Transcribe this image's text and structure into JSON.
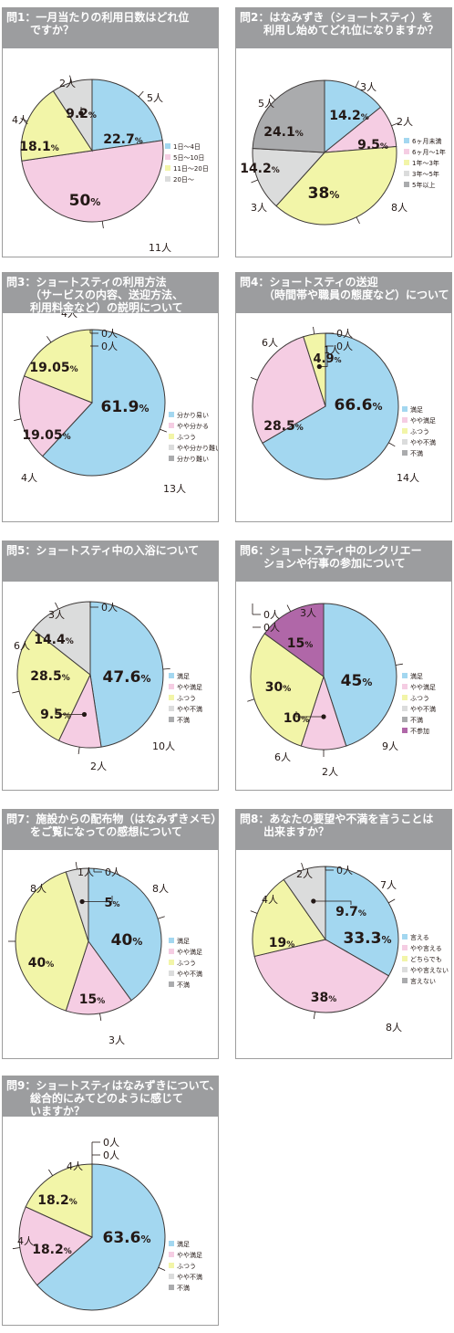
{
  "colors": {
    "blue": "#a3d7f0",
    "pink": "#f5cde3",
    "yellow": "#f2f5a8",
    "lightgray": "#dbdcdc",
    "gray": "#aaabad",
    "purple": "#b067a8"
  },
  "chart_data": [
    {
      "type": "pie",
      "title": [
        "問1：一月当たりの利用日数はどれ位",
        "ですか？"
      ],
      "slices": [
        {
          "name": "1日〜4日",
          "count": 5,
          "count_label": "5人",
          "percent": 22.7,
          "percent_label": "22.7%",
          "color": "blue"
        },
        {
          "name": "5日〜10日",
          "count": 11,
          "count_label": "11人",
          "percent": 50,
          "percent_label": "50%",
          "color": "pink"
        },
        {
          "name": "11日〜20日",
          "count": 4,
          "count_label": "4人",
          "percent": 18.1,
          "percent_label": "18.1%",
          "color": "yellow"
        },
        {
          "name": "20日〜",
          "count": 2,
          "count_label": "2人",
          "percent": 9.2,
          "percent_label": "9.2%",
          "color": "lightgray"
        }
      ]
    },
    {
      "type": "pie",
      "title": [
        "問2：はなみずき（ショートスティ）を",
        "利用し始めてどれ位になりますか？"
      ],
      "slices": [
        {
          "name": "6ヶ月未満",
          "count": 3,
          "count_label": "3人",
          "percent": 14.2,
          "percent_label": "14.2%",
          "color": "blue"
        },
        {
          "name": "6ヶ月〜1年",
          "count": 2,
          "count_label": "2人",
          "percent": 9.5,
          "percent_label": "9.5%",
          "color": "pink"
        },
        {
          "name": "1年〜3年",
          "count": 8,
          "count_label": "8人",
          "percent": 38,
          "percent_label": "38%",
          "color": "yellow"
        },
        {
          "name": "3年〜5年",
          "count": 3,
          "count_label": "3人",
          "percent": 14.2,
          "percent_label": "14.2%",
          "color": "lightgray"
        },
        {
          "name": "5年以上",
          "count": 5,
          "count_label": "5人",
          "percent": 24.1,
          "percent_label": "24.1%",
          "color": "gray"
        }
      ]
    },
    {
      "type": "pie",
      "title": [
        "問3：ショートスティの利用方法",
        "（サービスの内容、送迎方法、",
        "利用料金など）の説明について"
      ],
      "slices": [
        {
          "name": "分かり易い",
          "count": 13,
          "count_label": "13人",
          "percent": 61.9,
          "percent_label": "61.9%",
          "color": "blue"
        },
        {
          "name": "やや分かる",
          "count": 4,
          "count_label": "4人",
          "percent": 19.05,
          "percent_label": "19.05%",
          "color": "pink"
        },
        {
          "name": "ふつう",
          "count": 4,
          "count_label": "4人",
          "percent": 19.05,
          "percent_label": "19.05%",
          "color": "yellow"
        },
        {
          "name": "やや分かり難い",
          "count": 0,
          "count_label": "0人",
          "percent": 0,
          "percent_label": "",
          "color": "lightgray"
        },
        {
          "name": "分かり難い",
          "count": 0,
          "count_label": "0人",
          "percent": 0,
          "percent_label": "",
          "color": "gray"
        }
      ]
    },
    {
      "type": "pie",
      "title": [
        "問4：ショートスティの送迎",
        "（時間帯や職員の態度など）について"
      ],
      "slices": [
        {
          "name": "満足",
          "count": 14,
          "count_label": "14人",
          "percent": 66.6,
          "percent_label": "66.6%",
          "color": "blue"
        },
        {
          "name": "やや満足",
          "count": 6,
          "count_label": "6人",
          "percent": 28.5,
          "percent_label": "28.5%",
          "color": "pink"
        },
        {
          "name": "ふつう",
          "count": 1,
          "count_label": "1人",
          "percent": 4.9,
          "percent_label": "4.9%",
          "color": "yellow"
        },
        {
          "name": "やや不満",
          "count": 0,
          "count_label": "0人",
          "percent": 0,
          "percent_label": "",
          "color": "lightgray"
        },
        {
          "name": "不満",
          "count": 0,
          "count_label": "0人",
          "percent": 0,
          "percent_label": "",
          "color": "gray"
        }
      ]
    },
    {
      "type": "pie",
      "title": [
        "問5：ショートスティ中の入浴について"
      ],
      "slices": [
        {
          "name": "満足",
          "count": 10,
          "count_label": "10人",
          "percent": 47.6,
          "percent_label": "47.6%",
          "color": "blue"
        },
        {
          "name": "やや満足",
          "count": 2,
          "count_label": "2人",
          "percent": 9.5,
          "percent_label": "9.5%",
          "color": "pink"
        },
        {
          "name": "ふつう",
          "count": 6,
          "count_label": "6人",
          "percent": 28.5,
          "percent_label": "28.5%",
          "color": "yellow"
        },
        {
          "name": "やや不満",
          "count": 3,
          "count_label": "3人",
          "percent": 14.4,
          "percent_label": "14.4%",
          "color": "lightgray"
        },
        {
          "name": "不満",
          "count": 0,
          "count_label": "0人",
          "percent": 0,
          "percent_label": "",
          "color": "gray"
        }
      ]
    },
    {
      "type": "pie",
      "title": [
        "問6：ショートスティ中のレクリエー",
        "ションや行事の参加について"
      ],
      "slices": [
        {
          "name": "満足",
          "count": 9,
          "count_label": "9人",
          "percent": 45,
          "percent_label": "45%",
          "color": "blue"
        },
        {
          "name": "やや満足",
          "count": 2,
          "count_label": "2人",
          "percent": 10,
          "percent_label": "10%",
          "color": "pink"
        },
        {
          "name": "ふつう",
          "count": 6,
          "count_label": "6人",
          "percent": 30,
          "percent_label": "30%",
          "color": "yellow"
        },
        {
          "name": "やや不満",
          "count": 0,
          "count_label": "0人",
          "percent": 0,
          "percent_label": "",
          "color": "lightgray"
        },
        {
          "name": "不満",
          "count": 0,
          "count_label": "0人",
          "percent": 0,
          "percent_label": "",
          "color": "gray"
        },
        {
          "name": "不参加",
          "count": 3,
          "count_label": "3人",
          "percent": 15,
          "percent_label": "15%",
          "color": "purple"
        }
      ]
    },
    {
      "type": "pie",
      "title": [
        "問7：施設からの配布物（はなみずきメモ）",
        "をご覧になっての感想について"
      ],
      "slices": [
        {
          "name": "満足",
          "count": 8,
          "count_label": "8人",
          "percent": 40,
          "percent_label": "40%",
          "color": "blue"
        },
        {
          "name": "やや満足",
          "count": 3,
          "count_label": "3人",
          "percent": 15,
          "percent_label": "15%",
          "color": "pink"
        },
        {
          "name": "ふつう",
          "count": 8,
          "count_label": "8人",
          "percent": 40,
          "percent_label": "40%",
          "color": "yellow"
        },
        {
          "name": "やや不満",
          "count": 1,
          "count_label": "1人",
          "percent": 5,
          "percent_label": "5%",
          "color": "lightgray"
        },
        {
          "name": "不満",
          "count": 0,
          "count_label": "0人",
          "percent": 0,
          "percent_label": "",
          "color": "gray"
        }
      ]
    },
    {
      "type": "pie",
      "title": [
        "問8：あなたの要望や不満を言うことは",
        "出来ますか？"
      ],
      "slices": [
        {
          "name": "言える",
          "count": 7,
          "count_label": "7人",
          "percent": 33.3,
          "percent_label": "33.3%",
          "color": "blue"
        },
        {
          "name": "やや言える",
          "count": 8,
          "count_label": "8人",
          "percent": 38,
          "percent_label": "38%",
          "color": "pink"
        },
        {
          "name": "どちらでも",
          "count": 4,
          "count_label": "4人",
          "percent": 19,
          "percent_label": "19%",
          "color": "yellow"
        },
        {
          "name": "やや言えない",
          "count": 2,
          "count_label": "2人",
          "percent": 9.7,
          "percent_label": "9.7%",
          "color": "lightgray"
        },
        {
          "name": "言えない",
          "count": 0,
          "count_label": "0人",
          "percent": 0,
          "percent_label": "",
          "color": "gray"
        }
      ]
    },
    {
      "type": "pie",
      "title": [
        "問9：ショートスティはなみずきについて、",
        "総合的にみてどのように感じて",
        "いますか？"
      ],
      "slices": [
        {
          "name": "満足",
          "count": 14,
          "count_label": "14人",
          "percent": 63.6,
          "percent_label": "63.6%",
          "color": "blue"
        },
        {
          "name": "やや満足",
          "count": 4,
          "count_label": "4人",
          "percent": 18.2,
          "percent_label": "18.2%",
          "color": "pink"
        },
        {
          "name": "ふつう",
          "count": 4,
          "count_label": "4人",
          "percent": 18.2,
          "percent_label": "18.2%",
          "color": "yellow"
        },
        {
          "name": "やや不満",
          "count": 0,
          "count_label": "0人",
          "percent": 0,
          "percent_label": "",
          "color": "lightgray"
        },
        {
          "name": "不満",
          "count": 0,
          "count_label": "0人",
          "percent": 0,
          "percent_label": "",
          "color": "gray"
        }
      ]
    }
  ]
}
